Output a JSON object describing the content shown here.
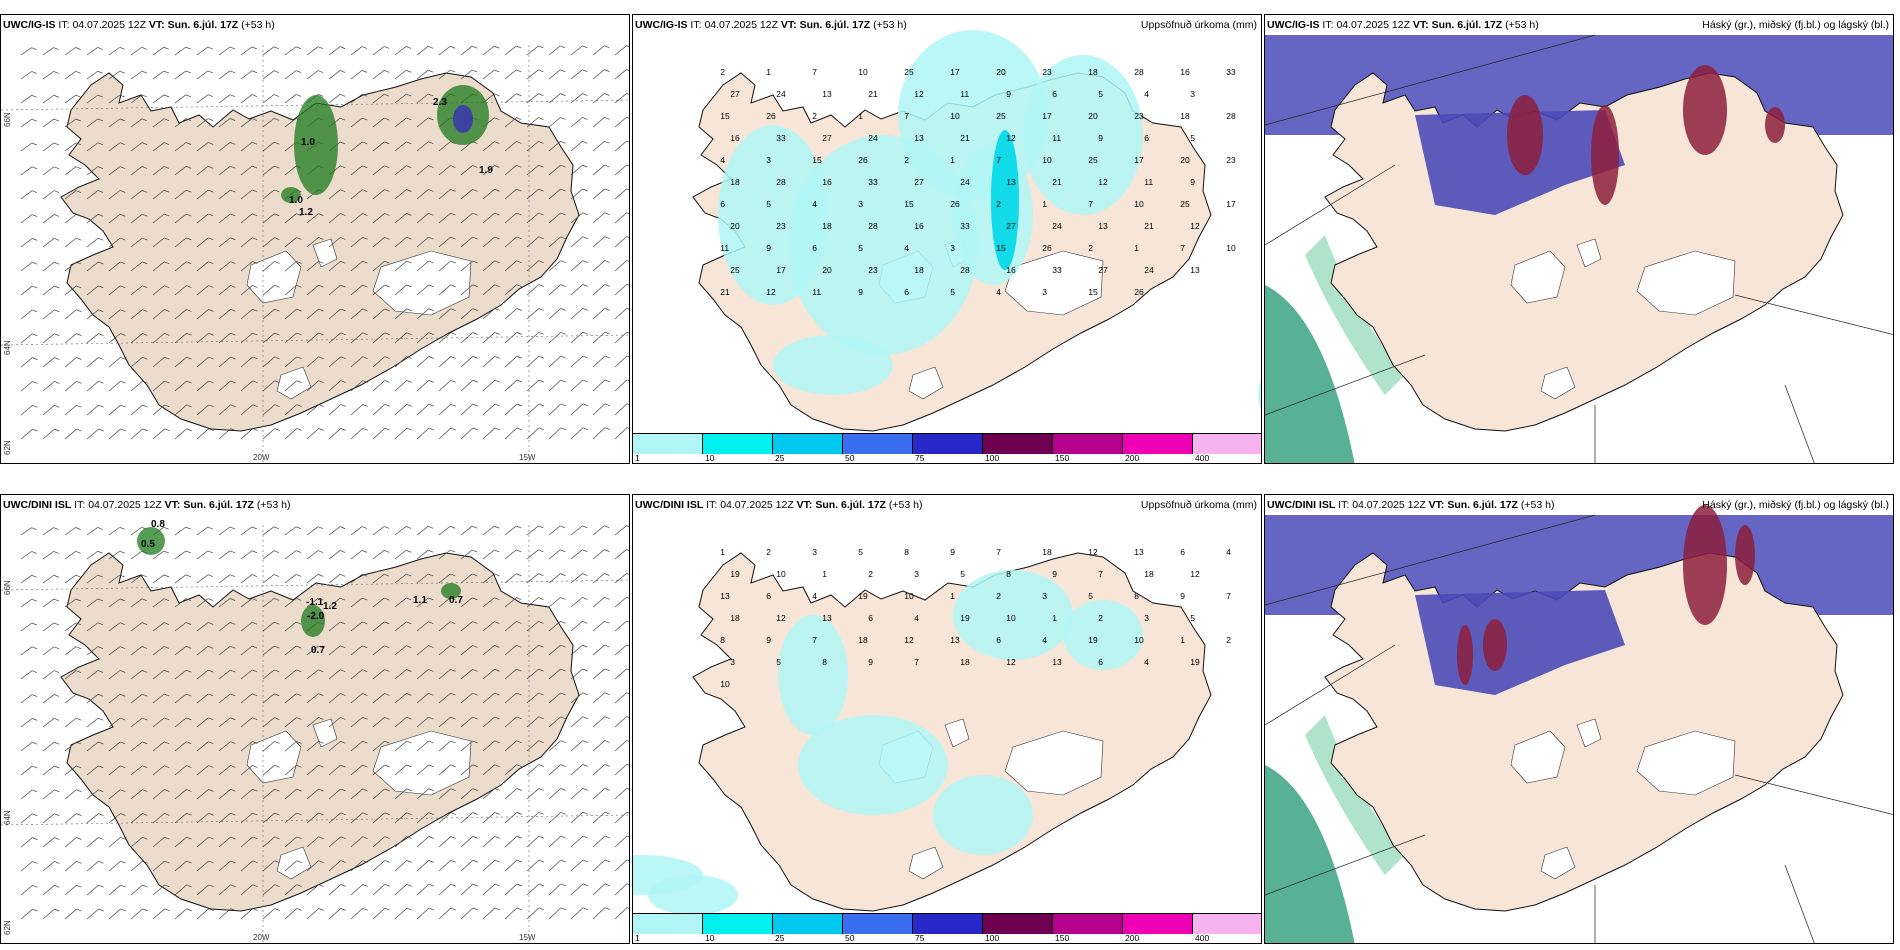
{
  "rows": [
    {
      "wind_panel": {
        "model": "UWC/IG-IS",
        "it_prefix": "IT:",
        "it_value": "04.07.2025 12Z",
        "vt_prefix": "VT:",
        "vt_value": "Sun. 6.júl. 17Z",
        "lead": "(+53 h)",
        "lat_labels": [
          "66N",
          "64N",
          "62N"
        ],
        "lon_labels": [
          "20W",
          "15W"
        ],
        "values": [
          "1.0",
          "1.2",
          "2.3",
          "1.9",
          "1.0"
        ]
      },
      "precip_panel": {
        "model": "UWC/IG-IS",
        "it_prefix": "IT:",
        "it_value": "04.07.2025 12Z",
        "vt_prefix": "VT:",
        "vt_value": "Sun. 6.júl. 17Z",
        "lead": "(+53 h)",
        "field_title": "Uppsöfnuð úrkoma (mm)",
        "values": [
          "2",
          "1",
          "7",
          "10",
          "25",
          "17",
          "20",
          "23",
          "18",
          "28",
          "16",
          "33",
          "27",
          "24",
          "13",
          "21",
          "12",
          "11",
          "9",
          "6",
          "5",
          "4",
          "3",
          "15",
          "26"
        ]
      },
      "cloud_panel": {
        "model": "UWC/IG-IS",
        "it_prefix": "IT:",
        "it_value": "04.07.2025 12Z",
        "vt_prefix": "VT:",
        "vt_value": "Sun. 6.júl. 17Z",
        "lead": "(+53 h)",
        "field_title": "Háský (gr.), miðský (fj.bl.) og lágský (bl.)"
      }
    },
    {
      "wind_panel": {
        "model": "UWC/DINI ISL",
        "it_prefix": "IT:",
        "it_value": "04.07.2025 12Z",
        "vt_prefix": "VT:",
        "vt_value": "Sun. 6.júl. 17Z",
        "lead": "(+53 h)",
        "lat_labels": [
          "66N",
          "64N",
          "62N"
        ],
        "lon_labels": [
          "20W",
          "15W"
        ],
        "values": [
          "0.8",
          "0.5",
          "-1.1",
          "-2.0",
          "0.7",
          "1.1",
          "0.7",
          "1.2"
        ]
      },
      "precip_panel": {
        "model": "UWC/DINI ISL",
        "it_prefix": "IT:",
        "it_value": "04.07.2025 12Z",
        "vt_prefix": "VT:",
        "vt_value": "Sun. 6.júl. 17Z",
        "lead": "(+53 h)",
        "field_title": "Uppsöfnuð úrkoma (mm)",
        "values": [
          "1",
          "2",
          "3",
          "5",
          "8",
          "9",
          "7",
          "18",
          "12",
          "13",
          "6",
          "4",
          "19",
          "10"
        ]
      },
      "cloud_panel": {
        "model": "UWC/DINI ISL",
        "it_prefix": "IT:",
        "it_value": "04.07.2025 12Z",
        "vt_prefix": "VT:",
        "vt_value": "Sun. 6.júl. 17Z",
        "lead": "(+53 h)",
        "field_title": "Háský (gr.), miðský (fj.bl.) og lágský (bl.)"
      }
    }
  ],
  "colorbar": {
    "ticks": [
      "1",
      "10",
      "25",
      "50",
      "75",
      "100",
      "150",
      "200",
      "400"
    ],
    "colors": [
      "#b0f6f6",
      "#00f0f0",
      "#00c8f0",
      "#3a6ef0",
      "#2828c8",
      "#6e0050",
      "#b4008c",
      "#f000b4",
      "#f5b4f0"
    ]
  },
  "colors": {
    "land": "#f7e6d8",
    "land_wind": "#ecdccb",
    "precip_light": "#b0f6f6",
    "precip_mid": "#00d8e8",
    "high_cloud": "#2e9c7a",
    "mid_cloud": "#4a4ab8",
    "low_cloud": "#8c1e3c",
    "wind_green": "#1e7a1e"
  }
}
